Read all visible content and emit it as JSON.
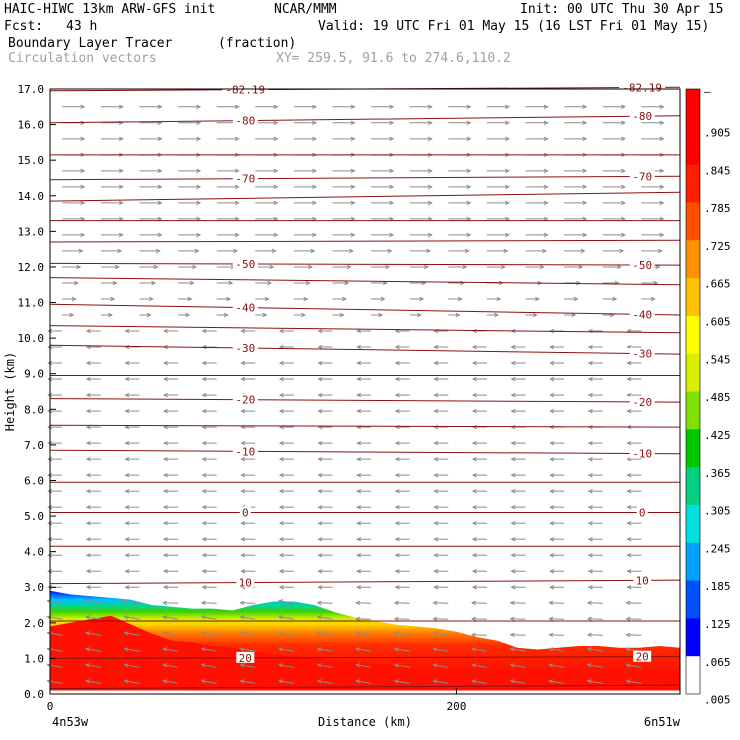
{
  "header": {
    "model": "HAIC-HIWC 13km ARW-GFS init",
    "org": "NCAR/MMM",
    "init": "Init: 00 UTC Thu 30 Apr 15",
    "fcst_label": "Fcst:",
    "fcst_value": "43 h",
    "valid": "Valid: 19 UTC Fri 01 May 15 (16 LST Fri 01 May 15)",
    "field1_name": "Boundary Layer Tracer",
    "field1_units": "(fraction)",
    "field2_name": "Circulation vectors",
    "xy_text": "XY= 259.5, 91.6 to 274.6,110.2"
  },
  "colors": {
    "contour": "#8b1010",
    "vector": "#8c8c8c",
    "tracer_scale": [
      "#ffffff",
      "#0000ff",
      "#0050ff",
      "#00a0ff",
      "#00e0e0",
      "#00d080",
      "#00c800",
      "#80e000",
      "#d8f000",
      "#ffff00",
      "#ffc000",
      "#ff9000",
      "#ff5000",
      "#ff2000",
      "#ff0000",
      "#ff0000"
    ]
  },
  "chart_data": {
    "type": "cross-section",
    "xlabel": "Distance (km)",
    "ylabel": "Height (km)",
    "xlim": [
      0,
      310
    ],
    "ylim": [
      0,
      17
    ],
    "x_ticks": [
      0,
      200
    ],
    "x_tick_labels": [
      "0",
      "200"
    ],
    "y_ticks": [
      0,
      1,
      2,
      3,
      4,
      5,
      6,
      7,
      8,
      9,
      10,
      11,
      12,
      13,
      14,
      15,
      16,
      17
    ],
    "y_tick_labels": [
      "0.0",
      "1.0",
      "2.0",
      "3.0",
      "4.0",
      "5.0",
      "6.0",
      "7.0",
      "8.0",
      "9.0",
      "10.0",
      "11.0",
      "12.0",
      "13.0",
      "14.0",
      "15.0",
      "16.0",
      "17.0"
    ],
    "left_endpoint": "4n53w",
    "right_endpoint": "6n51w",
    "colorbar_labels": [
      "–",
      ".905",
      ".845",
      ".785",
      ".725",
      ".665",
      ".605",
      ".545",
      ".485",
      ".425",
      ".365",
      ".305",
      ".245",
      ".185",
      ".125",
      ".065",
      ".005"
    ],
    "temperature_contours": [
      {
        "label": "-82.19",
        "x": [
          0,
          310
        ],
        "y": [
          16.95,
          17.05
        ]
      },
      {
        "label": "-80",
        "x": [
          0,
          310
        ],
        "y": [
          16.05,
          16.25
        ]
      },
      {
        "label": "-70",
        "x": [
          0,
          310
        ],
        "y": [
          14.45,
          14.55
        ]
      },
      {
        "label": "-50",
        "x": [
          0,
          310
        ],
        "y": [
          12.1,
          12.05
        ]
      },
      {
        "label": "-40",
        "x": [
          0,
          310
        ],
        "y": [
          10.95,
          10.65
        ]
      },
      {
        "label": "-30",
        "x": [
          0,
          310
        ],
        "y": [
          9.8,
          9.55
        ]
      },
      {
        "label": "-20",
        "x": [
          0,
          310
        ],
        "y": [
          8.3,
          8.2
        ]
      },
      {
        "label": "-10",
        "x": [
          0,
          310
        ],
        "y": [
          6.85,
          6.75
        ]
      },
      {
        "label": "0",
        "x": [
          0,
          310
        ],
        "y": [
          5.1,
          5.1
        ]
      },
      {
        "label": "10",
        "x": [
          0,
          310
        ],
        "y": [
          3.1,
          3.2
        ]
      },
      {
        "label": "20",
        "x": [
          0,
          310
        ],
        "y": [
          1.0,
          1.05
        ]
      }
    ],
    "unlabeled_contours_y": [
      [
        15.15,
        15.15
      ],
      [
        13.85,
        14.1
      ],
      [
        13.3,
        13.3
      ],
      [
        12.7,
        12.75
      ],
      [
        11.7,
        11.5
      ],
      [
        10.35,
        10.15
      ],
      [
        8.95,
        8.95
      ],
      [
        7.55,
        7.5
      ],
      [
        5.95,
        5.95
      ],
      [
        4.15,
        4.15
      ],
      [
        2.05,
        2.05
      ],
      [
        0.15,
        0.25
      ]
    ],
    "tracer_top_km": {
      "x": [
        0,
        10,
        20,
        30,
        40,
        50,
        60,
        70,
        80,
        90,
        100,
        110,
        120,
        130,
        140,
        150,
        160,
        170,
        180,
        190,
        200,
        210,
        220,
        230,
        240,
        250,
        260,
        270,
        280,
        290,
        300,
        310
      ],
      "y": [
        2.9,
        2.8,
        2.75,
        2.7,
        2.65,
        2.5,
        2.45,
        2.4,
        2.4,
        2.35,
        2.5,
        2.6,
        2.6,
        2.5,
        2.3,
        2.15,
        2.05,
        1.95,
        1.9,
        1.85,
        1.75,
        1.6,
        1.5,
        1.3,
        1.25,
        1.3,
        1.35,
        1.35,
        1.3,
        1.3,
        1.35,
        1.3
      ]
    },
    "tracer_core_top_km": {
      "x": [
        0,
        10,
        20,
        30,
        40,
        50,
        60,
        70,
        80,
        90,
        100,
        110,
        120,
        130,
        140,
        150,
        160,
        170,
        180,
        190,
        200,
        210,
        220,
        230,
        240,
        250,
        260,
        270,
        280,
        290,
        300,
        310
      ],
      "y": [
        1.9,
        2.0,
        2.1,
        2.2,
        1.95,
        1.7,
        1.5,
        1.45,
        1.35,
        1.3,
        1.2,
        1.1,
        1.05,
        1.0,
        0.95,
        0.9,
        0.85,
        0.8,
        0.7,
        0.65,
        0.6,
        0.55,
        0.55,
        0.55,
        0.6,
        0.6,
        0.6,
        0.55,
        0.55,
        0.5,
        0.45,
        0.4
      ]
    }
  }
}
